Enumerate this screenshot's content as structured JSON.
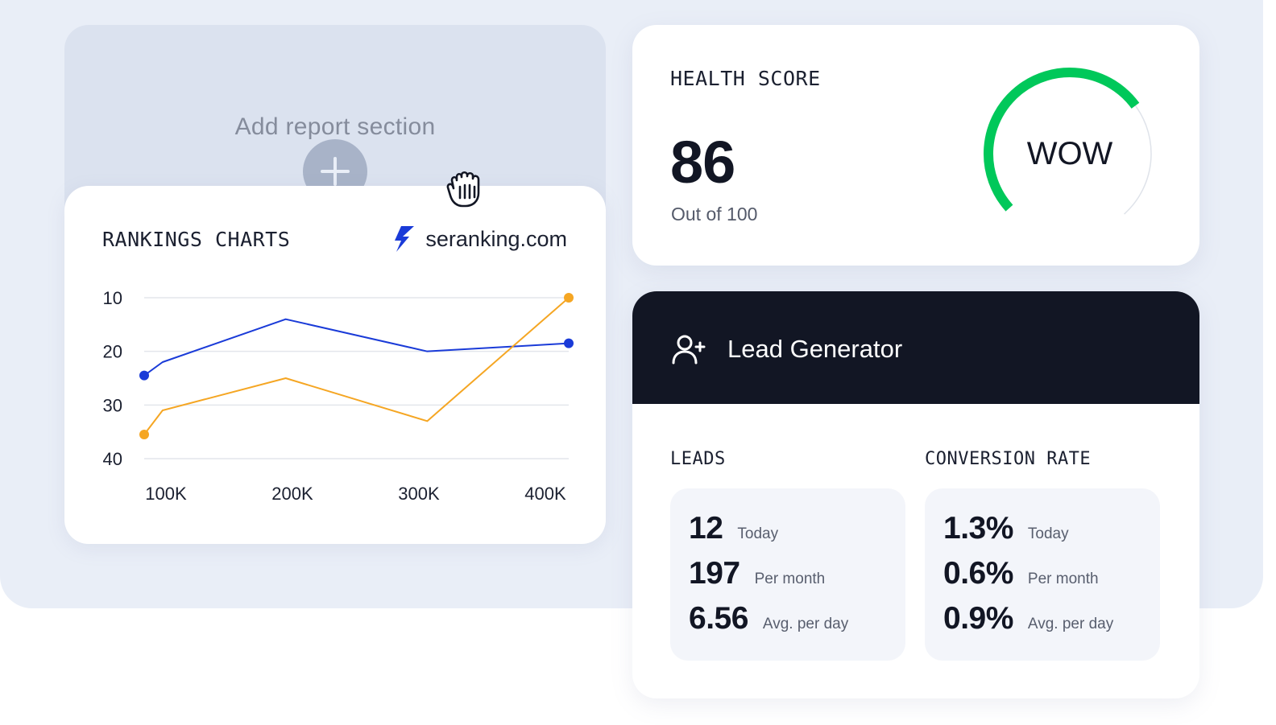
{
  "add_section": {
    "label": "Add report section"
  },
  "rankings": {
    "title": "RANKINGS CHARTS",
    "brand": "seranking.com",
    "chart_data": {
      "type": "line",
      "x": [
        "100K",
        "200K",
        "300K",
        "400K"
      ],
      "y_ticks": [
        10,
        20,
        30,
        40
      ],
      "ylim": [
        10,
        40
      ],
      "y_inverted": true,
      "grid": true,
      "series": [
        {
          "color": "#1a3bd8",
          "points": [
            [
              0,
              24.5
            ],
            [
              0.13,
              22.0
            ],
            [
              1.0,
              14.0
            ],
            [
              2.0,
              20.0
            ],
            [
              3.0,
              18.5
            ]
          ]
        },
        {
          "color": "#f5a623",
          "points": [
            [
              0,
              35.5
            ],
            [
              0.13,
              31.0
            ],
            [
              1.0,
              25.0
            ],
            [
              2.0,
              33.0
            ],
            [
              3.0,
              10.0
            ]
          ]
        }
      ]
    }
  },
  "health": {
    "title": "HEALTH SCORE",
    "score": "86",
    "subtitle": "Out of 100",
    "gauge_label": "WOW",
    "gauge_value": 86,
    "gauge_color": "#00c85a"
  },
  "lead_generator": {
    "title": "Lead Generator",
    "leads": {
      "label": "LEADS",
      "rows": [
        {
          "value": "12",
          "label": "Today"
        },
        {
          "value": "197",
          "label": "Per month"
        },
        {
          "value": "6.56",
          "label": "Avg. per day"
        }
      ]
    },
    "conversion": {
      "label": "CONVERSION RATE",
      "rows": [
        {
          "value": "1.3%",
          "label": "Today"
        },
        {
          "value": "0.6%",
          "label": "Per month"
        },
        {
          "value": "0.9%",
          "label": "Avg. per day"
        }
      ]
    }
  }
}
